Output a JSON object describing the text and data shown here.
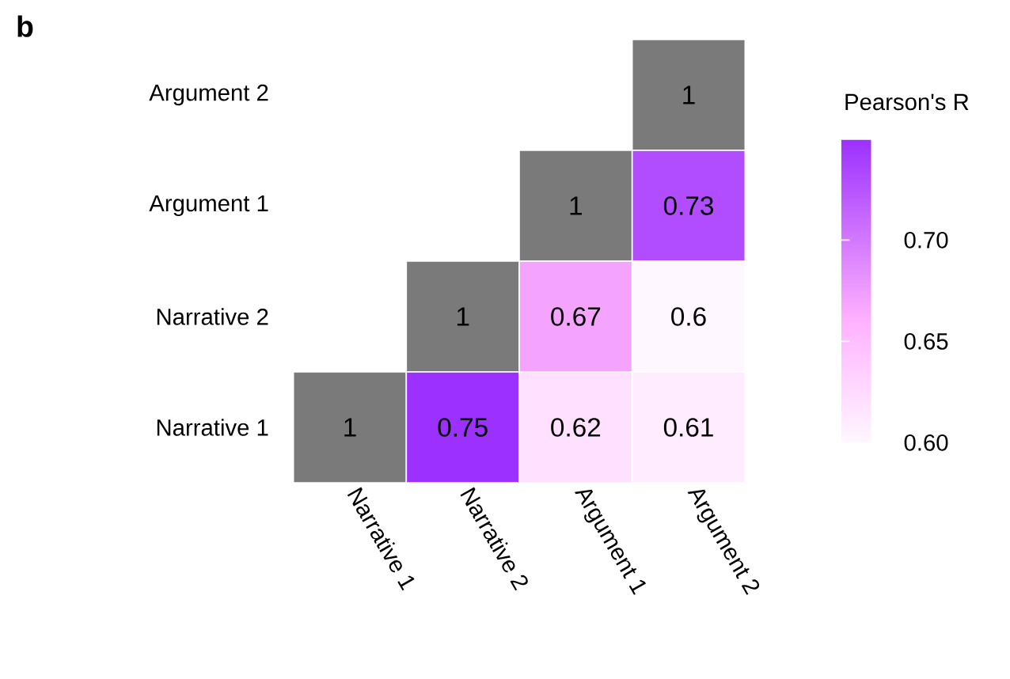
{
  "chart_data": {
    "type": "heatmap",
    "title": "b",
    "clabel": "Pearson's R",
    "categories": [
      "Narrative 1",
      "Narrative 2",
      "Argument 1",
      "Argument 2"
    ],
    "y_categories": [
      "Argument 2",
      "Argument 1",
      "Narrative 2",
      "Narrative 1"
    ],
    "cells": [
      [
        null,
        null,
        null,
        null
      ],
      [
        null,
        null,
        null,
        0.73
      ],
      [
        null,
        null,
        0.67,
        0.6
      ],
      [
        null,
        0.75,
        0.62,
        0.61
      ]
    ],
    "cell_labels": [
      [
        null,
        null,
        null,
        "1"
      ],
      [
        null,
        null,
        "1",
        "0.73"
      ],
      [
        null,
        "1",
        "0.67",
        "0.6"
      ],
      [
        "1",
        "0.75",
        "0.62",
        "0.61"
      ]
    ],
    "clim": [
      0.6,
      0.75
    ],
    "cticks": [
      {
        "value": 0.6,
        "label": "0.60"
      },
      {
        "value": 0.65,
        "label": "0.65"
      },
      {
        "value": 0.7,
        "label": "0.70"
      }
    ]
  }
}
